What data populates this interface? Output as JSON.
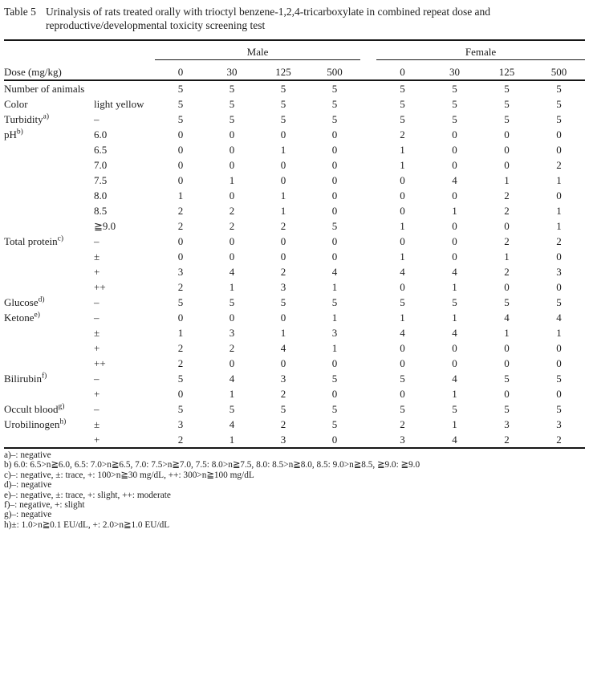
{
  "title": {
    "label": "Table 5",
    "line1": "Urinalysis of rats treated orally with trioctyl benzene-1,2,4-tricarboxylate in combined repeat dose and",
    "line2": "reproductive/developmental toxicity screening test"
  },
  "table": {
    "header": {
      "dose_label": "Dose (mg/kg)",
      "groups": [
        {
          "label": "Male"
        },
        {
          "label": "Female"
        }
      ],
      "doses": [
        "0",
        "30",
        "125",
        "500"
      ]
    },
    "sections": [
      {
        "label": "Number of animals",
        "sup": "",
        "rows": [
          {
            "sub": "",
            "values": [
              5,
              5,
              5,
              5,
              5,
              5,
              5,
              5
            ]
          }
        ]
      },
      {
        "label": "Color",
        "sup": "",
        "rows": [
          {
            "sub": "light yellow",
            "values": [
              5,
              5,
              5,
              5,
              5,
              5,
              5,
              5
            ]
          }
        ]
      },
      {
        "label": "Turbidity",
        "sup": "a)",
        "rows": [
          {
            "sub": "–",
            "values": [
              5,
              5,
              5,
              5,
              5,
              5,
              5,
              5
            ]
          }
        ]
      },
      {
        "label": "pH",
        "sup": "b)",
        "rows": [
          {
            "sub": "6.0",
            "values": [
              0,
              0,
              0,
              0,
              2,
              0,
              0,
              0
            ]
          },
          {
            "sub": "6.5",
            "values": [
              0,
              0,
              1,
              0,
              1,
              0,
              0,
              0
            ]
          },
          {
            "sub": "7.0",
            "values": [
              0,
              0,
              0,
              0,
              1,
              0,
              0,
              2
            ]
          },
          {
            "sub": "7.5",
            "values": [
              0,
              1,
              0,
              0,
              0,
              4,
              1,
              1
            ]
          },
          {
            "sub": "8.0",
            "values": [
              1,
              0,
              1,
              0,
              0,
              0,
              2,
              0
            ]
          },
          {
            "sub": "8.5",
            "values": [
              2,
              2,
              1,
              0,
              0,
              1,
              2,
              1
            ]
          },
          {
            "sub": "≧9.0",
            "values": [
              2,
              2,
              2,
              5,
              1,
              0,
              0,
              1
            ]
          }
        ]
      },
      {
        "label": "Total protein",
        "sup": "c)",
        "rows": [
          {
            "sub": "–",
            "values": [
              0,
              0,
              0,
              0,
              0,
              0,
              2,
              2
            ]
          },
          {
            "sub": "±",
            "values": [
              0,
              0,
              0,
              0,
              1,
              0,
              1,
              0
            ]
          },
          {
            "sub": "+",
            "values": [
              3,
              4,
              2,
              4,
              4,
              4,
              2,
              3
            ]
          },
          {
            "sub": "++",
            "values": [
              2,
              1,
              3,
              1,
              0,
              1,
              0,
              0
            ]
          }
        ]
      },
      {
        "label": "Glucose",
        "sup": "d)",
        "rows": [
          {
            "sub": "–",
            "values": [
              5,
              5,
              5,
              5,
              5,
              5,
              5,
              5
            ]
          }
        ]
      },
      {
        "label": "Ketone",
        "sup": "e)",
        "rows": [
          {
            "sub": "–",
            "values": [
              0,
              0,
              0,
              1,
              1,
              1,
              4,
              4
            ]
          },
          {
            "sub": "±",
            "values": [
              1,
              3,
              1,
              3,
              4,
              4,
              1,
              1
            ]
          },
          {
            "sub": "+",
            "values": [
              2,
              2,
              4,
              1,
              0,
              0,
              0,
              0
            ]
          },
          {
            "sub": "++",
            "values": [
              2,
              0,
              0,
              0,
              0,
              0,
              0,
              0
            ]
          }
        ]
      },
      {
        "label": "Bilirubin",
        "sup": "f)",
        "rows": [
          {
            "sub": "–",
            "values": [
              5,
              4,
              3,
              5,
              5,
              4,
              5,
              5
            ]
          },
          {
            "sub": "+",
            "values": [
              0,
              1,
              2,
              0,
              0,
              1,
              0,
              0
            ]
          }
        ]
      },
      {
        "label": "Occult blood",
        "sup": "g)",
        "rows": [
          {
            "sub": "–",
            "values": [
              5,
              5,
              5,
              5,
              5,
              5,
              5,
              5
            ]
          }
        ]
      },
      {
        "label": "Urobilinogen",
        "sup": "h)",
        "rows": [
          {
            "sub": "±",
            "values": [
              3,
              4,
              2,
              5,
              2,
              1,
              3,
              3
            ]
          },
          {
            "sub": "+",
            "values": [
              2,
              1,
              3,
              0,
              3,
              4,
              2,
              2
            ]
          }
        ]
      }
    ]
  },
  "footnotes": [
    "a)–: negative",
    "b) 6.0: 6.5>n≧6.0, 6.5: 7.0>n≧6.5, 7.0: 7.5>n≧7.0, 7.5: 8.0>n≧7.5, 8.0: 8.5>n≧8.0, 8.5: 9.0>n≧8.5, ≧9.0: ≧9.0",
    "c)–: negative, ±: trace, +: 100>n≧30 mg/dL, ++: 300>n≧100 mg/dL",
    "d)–: negative",
    "e)–: negative, ±: trace, +: slight, ++: moderate",
    "f)–: negative, +: slight",
    "g)–: negative",
    "h)±: 1.0>n≧0.1 EU/dL, +: 2.0>n≧1.0 EU/dL"
  ]
}
